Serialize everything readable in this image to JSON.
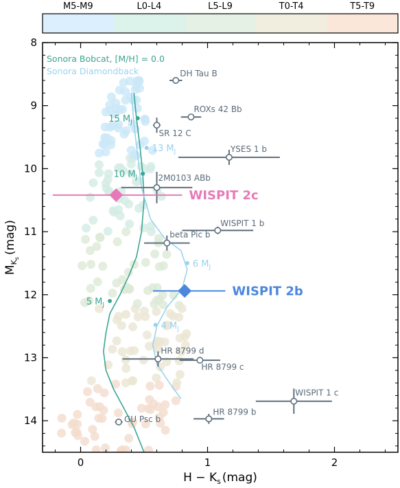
{
  "chart_data": {
    "type": "scatter",
    "xlabel": "H − K",
    "xlabel_sub": "s",
    "xlabel_unit": "(mag)",
    "ylabel": "M",
    "ylabel_sub": "K",
    "ylabel_subsub": "s",
    "ylabel_unit": "(mag)",
    "xlim": [
      -0.3,
      2.5
    ],
    "ylim": [
      14.5,
      8.0
    ],
    "x_ticks": [
      0,
      1,
      2
    ],
    "y_ticks": [
      8,
      9,
      10,
      11,
      12,
      13,
      14
    ],
    "spectral_colorbar": [
      {
        "label": "M5-M9",
        "color": "#dcefff"
      },
      {
        "label": "L0-L4",
        "color": "#dcf3ec"
      },
      {
        "label": "L5-L9",
        "color": "#e4f1e4"
      },
      {
        "label": "T0-T4",
        "color": "#f1eedf"
      },
      {
        "label": "T5-T9",
        "color": "#fbe6da"
      }
    ],
    "legend": [
      {
        "label": "Sonora Bobcat, [M/H] = 0.0",
        "color": "#3aa592"
      },
      {
        "label": "Sonora Diamondback",
        "color": "#9ad3ef"
      }
    ],
    "bobcat_track": [
      [
        0.42,
        8.8
      ],
      [
        0.44,
        9.2
      ],
      [
        0.47,
        9.7
      ],
      [
        0.49,
        10.1
      ],
      [
        0.5,
        10.5
      ],
      [
        0.48,
        11.0
      ],
      [
        0.44,
        11.4
      ],
      [
        0.38,
        11.7
      ],
      [
        0.31,
        12.0
      ],
      [
        0.23,
        12.3
      ],
      [
        0.2,
        12.6
      ],
      [
        0.18,
        12.9
      ],
      [
        0.2,
        13.2
      ],
      [
        0.26,
        13.5
      ],
      [
        0.34,
        13.8
      ],
      [
        0.42,
        14.1
      ],
      [
        0.5,
        14.5
      ]
    ],
    "bobcat_masses": [
      {
        "label": "15 M",
        "x": 0.45,
        "y": 9.2
      },
      {
        "label": "10 M",
        "x": 0.49,
        "y": 10.08
      },
      {
        "label": "5 M",
        "x": 0.23,
        "y": 12.1
      }
    ],
    "diamondback_track": [
      [
        0.4,
        8.8
      ],
      [
        0.42,
        9.3
      ],
      [
        0.45,
        9.8
      ],
      [
        0.48,
        10.3
      ],
      [
        0.55,
        10.8
      ],
      [
        0.66,
        11.1
      ],
      [
        0.79,
        11.3
      ],
      [
        0.84,
        11.6
      ],
      [
        0.8,
        11.9
      ],
      [
        0.68,
        12.2
      ],
      [
        0.6,
        12.5
      ],
      [
        0.57,
        12.8
      ],
      [
        0.6,
        13.1
      ],
      [
        0.7,
        13.4
      ],
      [
        0.79,
        13.65
      ]
    ],
    "diamondback_masses": [
      {
        "label": "13 M",
        "x": 0.52,
        "y": 9.67
      },
      {
        "label": "6 M",
        "x": 0.84,
        "y": 11.5
      },
      {
        "label": "4 M",
        "x": 0.59,
        "y": 12.48
      }
    ],
    "mass_unit_sub": "J",
    "objects": [
      {
        "name": "DH Tau B",
        "x": 0.75,
        "y": 8.6,
        "xerr": 0.05,
        "yerr": 0.05
      },
      {
        "name": "ROXs 42 Bb",
        "x": 0.87,
        "y": 9.18,
        "xerr": 0.08,
        "yerr": 0.05
      },
      {
        "name": "SR 12 C",
        "x": 0.6,
        "y": 9.31,
        "xerr": 0.03,
        "yerr": 0.12
      },
      {
        "name": "YSES 1 b",
        "x": 1.17,
        "y": 9.82,
        "xerr": 0.4,
        "yerr": 0.12
      },
      {
        "name": "2M0103 ABb",
        "x": 0.6,
        "y": 10.3,
        "xerr": 0.28,
        "yerr": 0.25
      },
      {
        "name": "WISPIT 1 b",
        "x": 1.08,
        "y": 10.98,
        "xerr": 0.28,
        "yerr": 0.06
      },
      {
        "name": "beta Pic b",
        "x": 0.68,
        "y": 11.18,
        "xerr": 0.18,
        "yerr": 0.12
      },
      {
        "name": "HR 8799 d",
        "x": 0.61,
        "y": 13.02,
        "xerr": 0.28,
        "yerr": 0.12
      },
      {
        "name": "HR 8799 c",
        "x": 0.94,
        "y": 13.04,
        "xerr": 0.16,
        "yerr": 0.05
      },
      {
        "name": "WISPIT 1 c",
        "x": 1.68,
        "y": 13.69,
        "xerr": 0.3,
        "yerr": 0.2
      },
      {
        "name": "HR 8799 b",
        "x": 1.01,
        "y": 13.97,
        "xerr": 0.12,
        "yerr": 0.08
      },
      {
        "name": "GU Psc b",
        "x": 0.3,
        "y": 14.02,
        "xerr": 0.03,
        "yerr": 0.05
      }
    ],
    "highlights": [
      {
        "name": "WISPIT 2c",
        "x": 0.28,
        "y": 10.42,
        "xerr_lo": 0.5,
        "xerr_hi": 0.52,
        "color": "#e67ab8"
      },
      {
        "name": "WISPIT 2b",
        "x": 0.82,
        "y": 11.94,
        "xerr_lo": 0.25,
        "xerr_hi": 0.32,
        "color": "#4a87dd"
      }
    ]
  }
}
